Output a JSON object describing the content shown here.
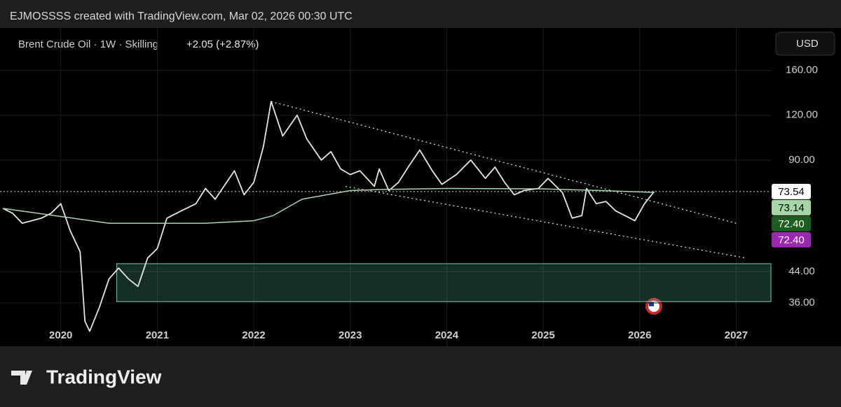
{
  "header": {
    "attribution": "EJMOSSSS created with TradingView.com, Mar 02, 2026 00:30 UTC",
    "symbol": "Brent Crude Oil · 1W · Skilling",
    "change": "+2.05 (+2.87%)",
    "currency": "USD"
  },
  "chart_data": {
    "type": "line",
    "log_scale": true,
    "grid": true,
    "xlim": [
      2019.37,
      2027.36
    ],
    "xticks": [
      2020,
      2021,
      2022,
      2023,
      2024,
      2025,
      2026,
      2027
    ],
    "ylim": [
      31.2,
      210
    ],
    "yticks": [
      {
        "value": 36,
        "label": "36.00"
      },
      {
        "value": 44,
        "label": "44.00"
      },
      {
        "value": 90,
        "label": "90.00"
      },
      {
        "value": 120,
        "label": "120.00"
      },
      {
        "value": 160,
        "label": "160.00"
      }
    ],
    "series": [
      {
        "color": "#e6e6e6",
        "x": [
          2019.4,
          2019.5,
          2019.6,
          2019.7,
          2019.8,
          2019.9,
          2020.0,
          2020.1,
          2020.2,
          2020.25,
          2020.3,
          2020.4,
          2020.5,
          2020.6,
          2020.7,
          2020.8,
          2020.9,
          2021.0,
          2021.1,
          2021.2,
          2021.4,
          2021.5,
          2021.6,
          2021.8,
          2021.9,
          2022.0,
          2022.1,
          2022.18,
          2022.3,
          2022.45,
          2022.55,
          2022.7,
          2022.8,
          2022.9,
          2023.0,
          2023.1,
          2023.25,
          2023.3,
          2023.4,
          2023.5,
          2023.6,
          2023.72,
          2023.85,
          2023.95,
          2024.1,
          2024.25,
          2024.4,
          2024.5,
          2024.6,
          2024.7,
          2024.8,
          2024.95,
          2025.05,
          2025.2,
          2025.3,
          2025.4,
          2025.45,
          2025.55,
          2025.65,
          2025.75,
          2025.85,
          2025.95,
          2026.05,
          2026.15
        ],
        "values": [
          66,
          64,
          60,
          61,
          62,
          64,
          68,
          57,
          50,
          32,
          30,
          35,
          42,
          45,
          42,
          40,
          48,
          51,
          62,
          64,
          68,
          75,
          70,
          84,
          72,
          78,
          98,
          131,
          105,
          120,
          103,
          90,
          95,
          85,
          82,
          84,
          76,
          85,
          74,
          78,
          86,
          96,
          84,
          77,
          82,
          90,
          80,
          86,
          78,
          72,
          74,
          75,
          80,
          73,
          62,
          63,
          75,
          68,
          69,
          65,
          63,
          61,
          68,
          73.54
        ]
      },
      {
        "color": "#a8d8a8",
        "x": [
          2019.4,
          2020.5,
          2021.5,
          2022.0,
          2022.2,
          2022.5,
          2023.0,
          2023.3,
          2024.0,
          2025.0,
          2025.6,
          2026.15
        ],
        "values": [
          66,
          60,
          60,
          61,
          63,
          70,
          74,
          74.5,
          75,
          74.8,
          74,
          73.14
        ]
      }
    ],
    "trendlines": [
      {
        "color": "#dddddd",
        "x": [
          2022.18,
          2027.0
        ],
        "values": [
          131,
          60
        ]
      },
      {
        "color": "#dddddd",
        "x": [
          2022.95,
          2027.1
        ],
        "values": [
          76,
          48
        ]
      }
    ],
    "zone": {
      "color": "#5fd3b3",
      "x": [
        2020.58,
        2027.36
      ],
      "values": [
        36.3,
        46.3
      ]
    },
    "price_labels": [
      {
        "value": 73.54,
        "label": "73.54",
        "color": "#ffffff",
        "text_color": "#000000"
      },
      {
        "value": 73.14,
        "label": "73.14",
        "color": "#a5d6a7",
        "text_color": "#000000"
      },
      {
        "value": 72.4,
        "label": "72.40",
        "color": "#1b5e20",
        "text_color": "#ffffff"
      },
      {
        "value": 72.4,
        "label": "72.40",
        "color": "#9c27b0",
        "text_color": "#ffffff"
      }
    ]
  },
  "footer": {
    "brand": "TradingView"
  }
}
